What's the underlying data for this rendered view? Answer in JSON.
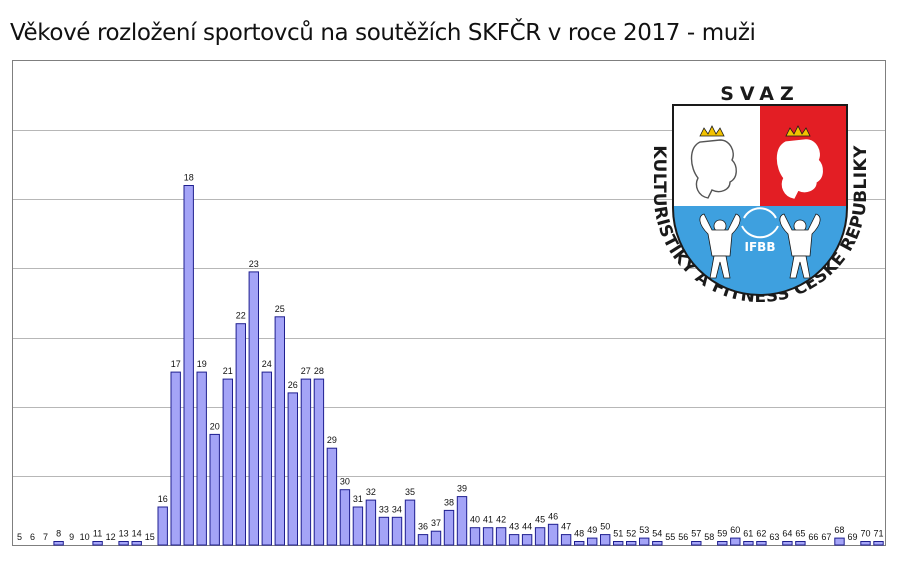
{
  "title": "Věkové rozložení sportovců na soutěžích SKFČR v roce 2017 - muži",
  "colors": {
    "bar_fill": "#a4a4f7",
    "bar_stroke": "#1f1f8f",
    "grid": "#b7b7b7",
    "logo_red": "#e31e24",
    "logo_blue": "#3ea0df",
    "logo_dark": "#1a1a1a"
  },
  "logo": {
    "top_text": "SVAZ",
    "arc_text": "KULTURISTIKY A FITNESS ČESKÉ REPUBLIKY",
    "badge_text": "IFBB",
    "icons": [
      "lion-crest-icon",
      "bodybuilders-icon",
      "laurel-wreath-icon"
    ]
  },
  "chart_data": {
    "type": "bar",
    "title": "Věkové rozložení sportovců na soutěžích SKFČR v roce 2017 - muži",
    "xlabel": "",
    "ylabel": "",
    "grid": "horizontal",
    "ylim": [
      0,
      14
    ],
    "categories": [
      "5",
      "6",
      "7",
      "8",
      "9",
      "10",
      "11",
      "12",
      "13",
      "14",
      "15",
      "16",
      "17",
      "18",
      "19",
      "20",
      "21",
      "22",
      "23",
      "24",
      "25",
      "26",
      "27",
      "28",
      "29",
      "30",
      "31",
      "32",
      "33",
      "34",
      "35",
      "36",
      "37",
      "38",
      "39",
      "40",
      "41",
      "42",
      "43",
      "44",
      "45",
      "46",
      "47",
      "48",
      "49",
      "50",
      "51",
      "52",
      "53",
      "54",
      "55",
      "56",
      "57",
      "58",
      "59",
      "60",
      "61",
      "62",
      "63",
      "64",
      "65",
      "66",
      "67",
      "68",
      "69",
      "70",
      "71"
    ],
    "values": [
      0,
      0,
      0,
      0.1,
      0,
      0,
      0.1,
      0,
      0.1,
      0.1,
      0,
      1.1,
      5.0,
      10.4,
      5.0,
      3.2,
      4.8,
      6.4,
      7.9,
      5.0,
      6.6,
      4.4,
      4.8,
      4.8,
      2.8,
      1.6,
      1.1,
      1.3,
      0.8,
      0.8,
      1.3,
      0.3,
      0.4,
      1.0,
      1.4,
      0.5,
      0.5,
      0.5,
      0.3,
      0.3,
      0.5,
      0.6,
      0.3,
      0.1,
      0.2,
      0.3,
      0.1,
      0.1,
      0.2,
      0.1,
      0,
      0,
      0.1,
      0,
      0.1,
      0.2,
      0.1,
      0.1,
      0,
      0.1,
      0.1,
      0,
      0,
      0.2,
      0,
      0.1,
      0.1
    ]
  }
}
